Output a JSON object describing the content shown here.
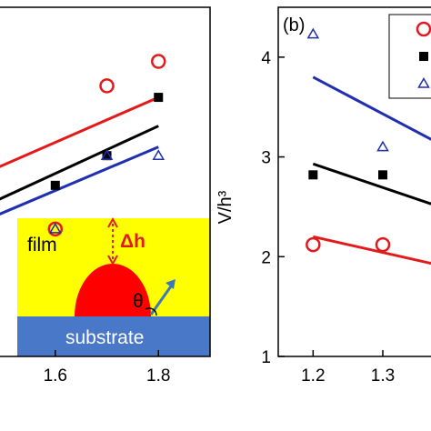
{
  "colors": {
    "red": "#e31a1c",
    "black": "#000000",
    "blue": "#1f2fb0",
    "film": "#ffff00",
    "substrate": "#4a78c8",
    "droplet": "#ff0000",
    "arrow": "#3a7ab8",
    "delta_h": "#e31a1c"
  },
  "inset": {
    "film_label": "film",
    "substrate_label": "substrate",
    "delta_h_label": "Δh",
    "theta_label": "θ"
  },
  "chart_data": [
    {
      "panel": "a",
      "type": "scatter",
      "panel_label": "",
      "xlabel": "",
      "ylabel": "",
      "xlim": [
        1.44,
        1.9
      ],
      "ylim": [
        0,
        1
      ],
      "x_ticks": [
        1.6,
        1.8
      ],
      "x_tick_labels": [
        "1.6",
        "1.8"
      ],
      "grid": false,
      "series": [
        {
          "marker": "circle-open",
          "color": "red",
          "points": [
            [
              1.6,
              0.365
            ],
            [
              1.7,
              0.775
            ],
            [
              1.8,
              0.845
            ]
          ],
          "fit_line": [
            [
              1.44,
              0.51
            ],
            [
              1.8,
              0.742
            ]
          ]
        },
        {
          "marker": "square-filled",
          "color": "black",
          "points": [
            [
              1.6,
              0.49
            ],
            [
              1.7,
              0.575
            ],
            [
              1.8,
              0.742
            ]
          ],
          "fit_line": [
            [
              1.44,
              0.415
            ],
            [
              1.8,
              0.66
            ]
          ]
        },
        {
          "marker": "triangle-open",
          "color": "blue",
          "points": [
            [
              1.6,
              0.365
            ],
            [
              1.7,
              0.575
            ],
            [
              1.8,
              0.575
            ]
          ],
          "fit_line": [
            [
              1.44,
              0.375
            ],
            [
              1.8,
              0.6
            ]
          ]
        }
      ]
    },
    {
      "panel": "b",
      "type": "scatter",
      "panel_label": "(b)",
      "xlabel": "",
      "ylabel": "V/h³",
      "xlim": [
        1.15,
        1.39
      ],
      "ylim": [
        1,
        4.5
      ],
      "x_ticks": [
        1.2,
        1.3
      ],
      "x_tick_labels": [
        "1.2",
        "1.3"
      ],
      "y_ticks": [
        1,
        2,
        3,
        4
      ],
      "y_tick_labels": [
        "1",
        "2",
        "3",
        "4"
      ],
      "grid": false,
      "series": [
        {
          "marker": "circle-open",
          "color": "red",
          "points": [
            [
              1.2,
              2.12
            ],
            [
              1.3,
              2.12
            ]
          ],
          "fit_line": [
            [
              1.2,
              2.2
            ],
            [
              1.39,
              1.9
            ]
          ]
        },
        {
          "marker": "square-filled",
          "color": "black",
          "points": [
            [
              1.2,
              2.82
            ],
            [
              1.3,
              2.82
            ]
          ],
          "fit_line": [
            [
              1.2,
              2.93
            ],
            [
              1.39,
              2.48
            ]
          ]
        },
        {
          "marker": "triangle-open",
          "color": "blue",
          "points": [
            [
              1.2,
              4.23
            ],
            [
              1.3,
              3.1
            ]
          ],
          "fit_line": [
            [
              1.2,
              3.8
            ],
            [
              1.39,
              3.1
            ]
          ]
        }
      ],
      "legend": {
        "placement": "top-right",
        "entries": [
          "",
          "",
          ""
        ]
      }
    }
  ]
}
